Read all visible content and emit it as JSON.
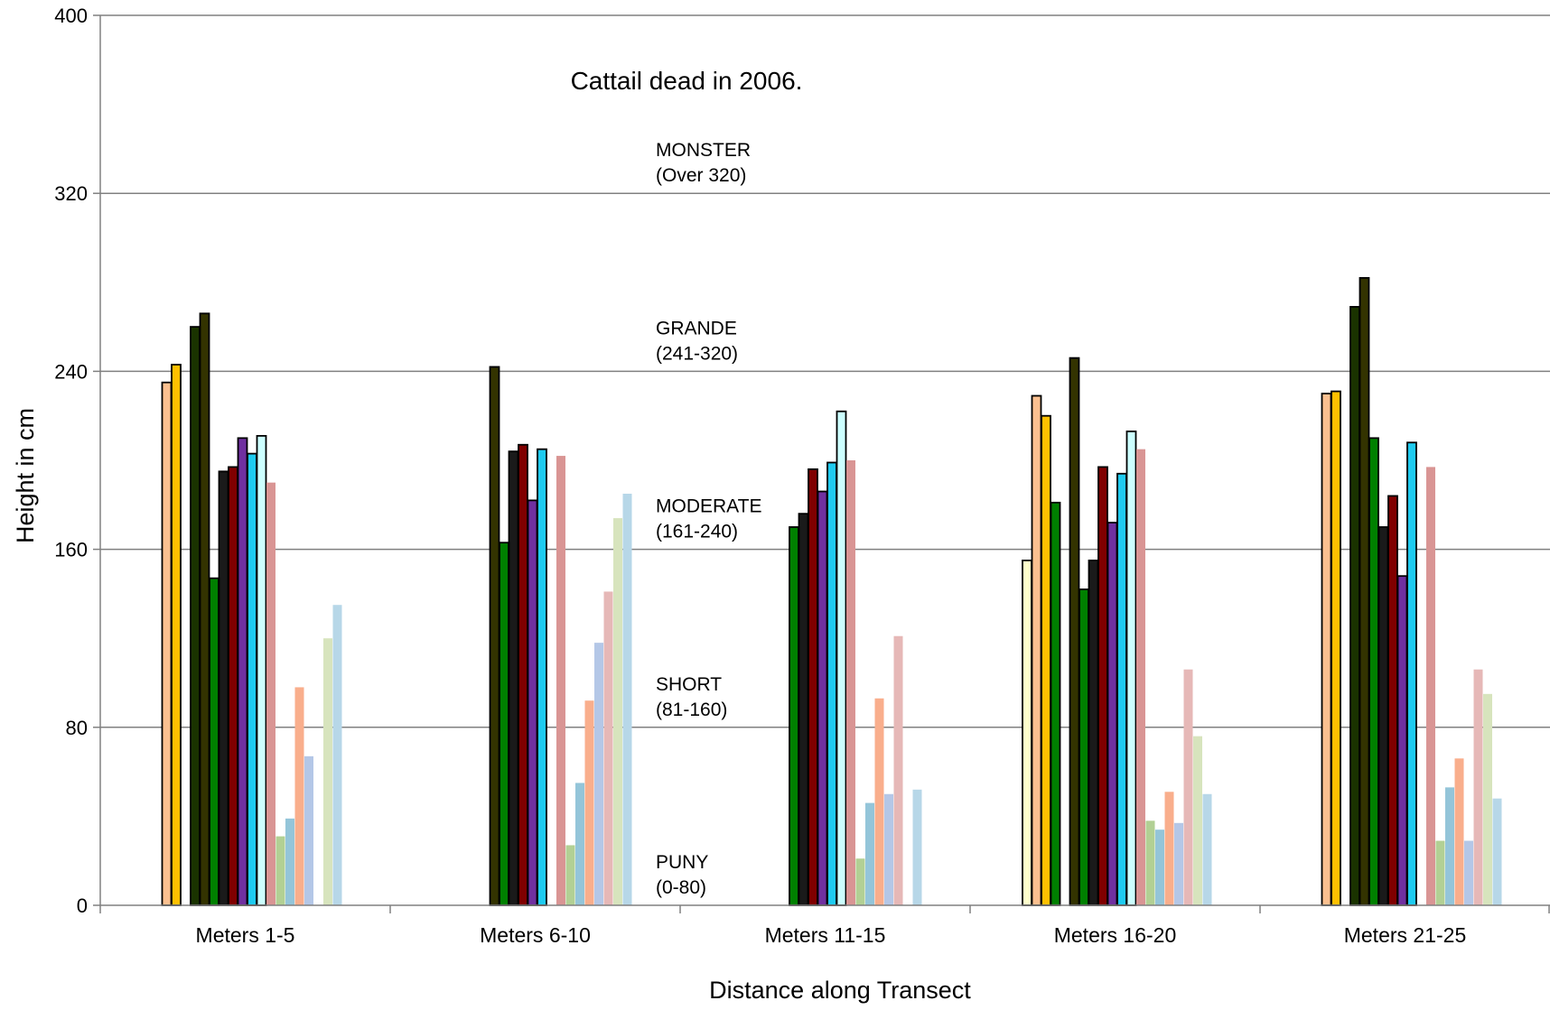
{
  "chart_data": {
    "type": "bar",
    "title": "Cattail dead in 2006.",
    "xlabel": "Distance along Transect",
    "ylabel": "Height in cm",
    "ylim": [
      0,
      400
    ],
    "yticks": [
      "0",
      "80",
      "160",
      "240",
      "320",
      "400"
    ],
    "grid": true,
    "legend": "none",
    "categories": [
      "Meters 1-5",
      "Meters  6-10",
      "Meters 11-15",
      "Meters 16-20",
      "Meters 21-25"
    ],
    "height_classes": [
      {
        "name": "MONSTER",
        "range": "(Over 320)"
      },
      {
        "name": "GRANDE",
        "range": "(241-320)"
      },
      {
        "name": "MODERATE",
        "range": "(161-240)"
      },
      {
        "name": "SHORT",
        "range": "(81-160)"
      },
      {
        "name": "PUNY",
        "range": "(0-80)"
      }
    ],
    "series_colors": [
      "#ffffcc",
      "#fac090",
      "#ffc000",
      "#008000",
      "#1a3300",
      "#333300",
      "#008000",
      "#1a1a1a",
      "#800000",
      "#7030a0",
      "#1ecbf0",
      "#ccffff",
      "#d99594",
      "#b2d094",
      "#94c5d9",
      "#f9ae8c",
      "#b4c7e7",
      "#e6b8b7",
      "#d7e4bd",
      "#b7d7e8"
    ],
    "series_outlined": [
      true,
      true,
      true,
      true,
      true,
      true,
      true,
      true,
      true,
      true,
      true,
      true,
      false,
      false,
      false,
      false,
      false,
      false,
      false,
      false
    ],
    "series": [
      {
        "values": [
          null,
          null,
          null,
          155,
          null
        ]
      },
      {
        "values": [
          235,
          null,
          null,
          229,
          230
        ]
      },
      {
        "values": [
          243,
          null,
          null,
          220,
          231
        ]
      },
      {
        "values": [
          null,
          null,
          null,
          181,
          null
        ]
      },
      {
        "values": [
          260,
          null,
          null,
          null,
          269
        ]
      },
      {
        "values": [
          266,
          242,
          null,
          246,
          282
        ]
      },
      {
        "values": [
          147,
          163,
          170,
          142,
          210
        ]
      },
      {
        "values": [
          195,
          204,
          176,
          155,
          170
        ]
      },
      {
        "values": [
          197,
          207,
          196,
          197,
          184
        ]
      },
      {
        "values": [
          210,
          182,
          186,
          172,
          148
        ]
      },
      {
        "values": [
          203,
          205,
          199,
          194,
          208
        ]
      },
      {
        "values": [
          211,
          null,
          222,
          213,
          null
        ]
      },
      {
        "values": [
          190,
          202,
          200,
          205,
          197
        ]
      },
      {
        "values": [
          31,
          27,
          21,
          38,
          29
        ]
      },
      {
        "values": [
          39,
          55,
          46,
          34,
          53
        ]
      },
      {
        "values": [
          98,
          92,
          93,
          51,
          66
        ]
      },
      {
        "values": [
          67,
          118,
          50,
          37,
          29
        ]
      },
      {
        "values": [
          null,
          141,
          121,
          106,
          106
        ]
      },
      {
        "values": [
          120,
          174,
          null,
          76,
          95
        ]
      },
      {
        "values": [
          135,
          185,
          52,
          50,
          48
        ]
      }
    ]
  }
}
